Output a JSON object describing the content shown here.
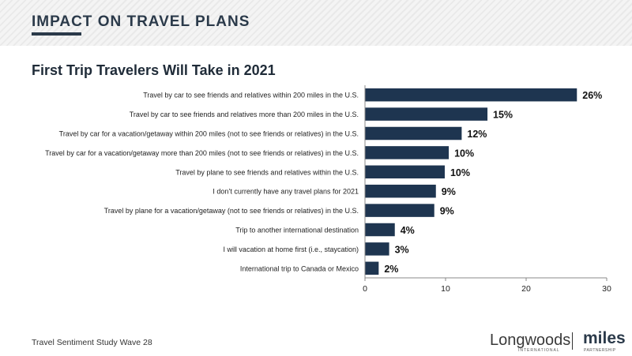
{
  "header": {
    "title": "IMPACT ON TRAVEL PLANS"
  },
  "chart_data": {
    "type": "bar",
    "orientation": "horizontal",
    "title": "First Trip Travelers Will Take in 2021",
    "categories": [
      "Travel by car to see friends and relatives within 200 miles in the U.S.",
      "Travel by car to see friends and relatives more than 200 miles in the U.S.",
      "Travel by car for a vacation/getaway within 200 miles (not to see friends or relatives) in the U.S.",
      "Travel by car for a vacation/getaway more than 200 miles (not to see friends or relatives) in the U.S.",
      "Travel by plane to see friends and relatives within the U.S.",
      "I don’t currently have any travel plans for 2021",
      "Travel by plane for a vacation/getaway (not to see friends or relatives) in the U.S.",
      "Trip to another international destination",
      "I will vacation at home first (i.e., staycation)",
      "International trip to Canada or Mexico"
    ],
    "values": [
      26.3,
      15.2,
      12.0,
      10.4,
      9.9,
      8.8,
      8.6,
      3.7,
      3.0,
      1.7
    ],
    "data_labels": [
      "26%",
      "15%",
      "12%",
      "10%",
      "10%",
      "9%",
      "9%",
      "4%",
      "3%",
      "2%"
    ],
    "xlim": [
      0,
      30
    ],
    "xticks": [
      0,
      10,
      20,
      30
    ],
    "bar_color": "#1e3550",
    "grid": false
  },
  "footer": {
    "source": "Travel Sentiment Study Wave 28"
  },
  "logos": {
    "longwoods": "Longwoods",
    "longwoods_sub": "INTERNATIONAL",
    "miles": "miles",
    "miles_sub": "PARTNERSHIP"
  }
}
